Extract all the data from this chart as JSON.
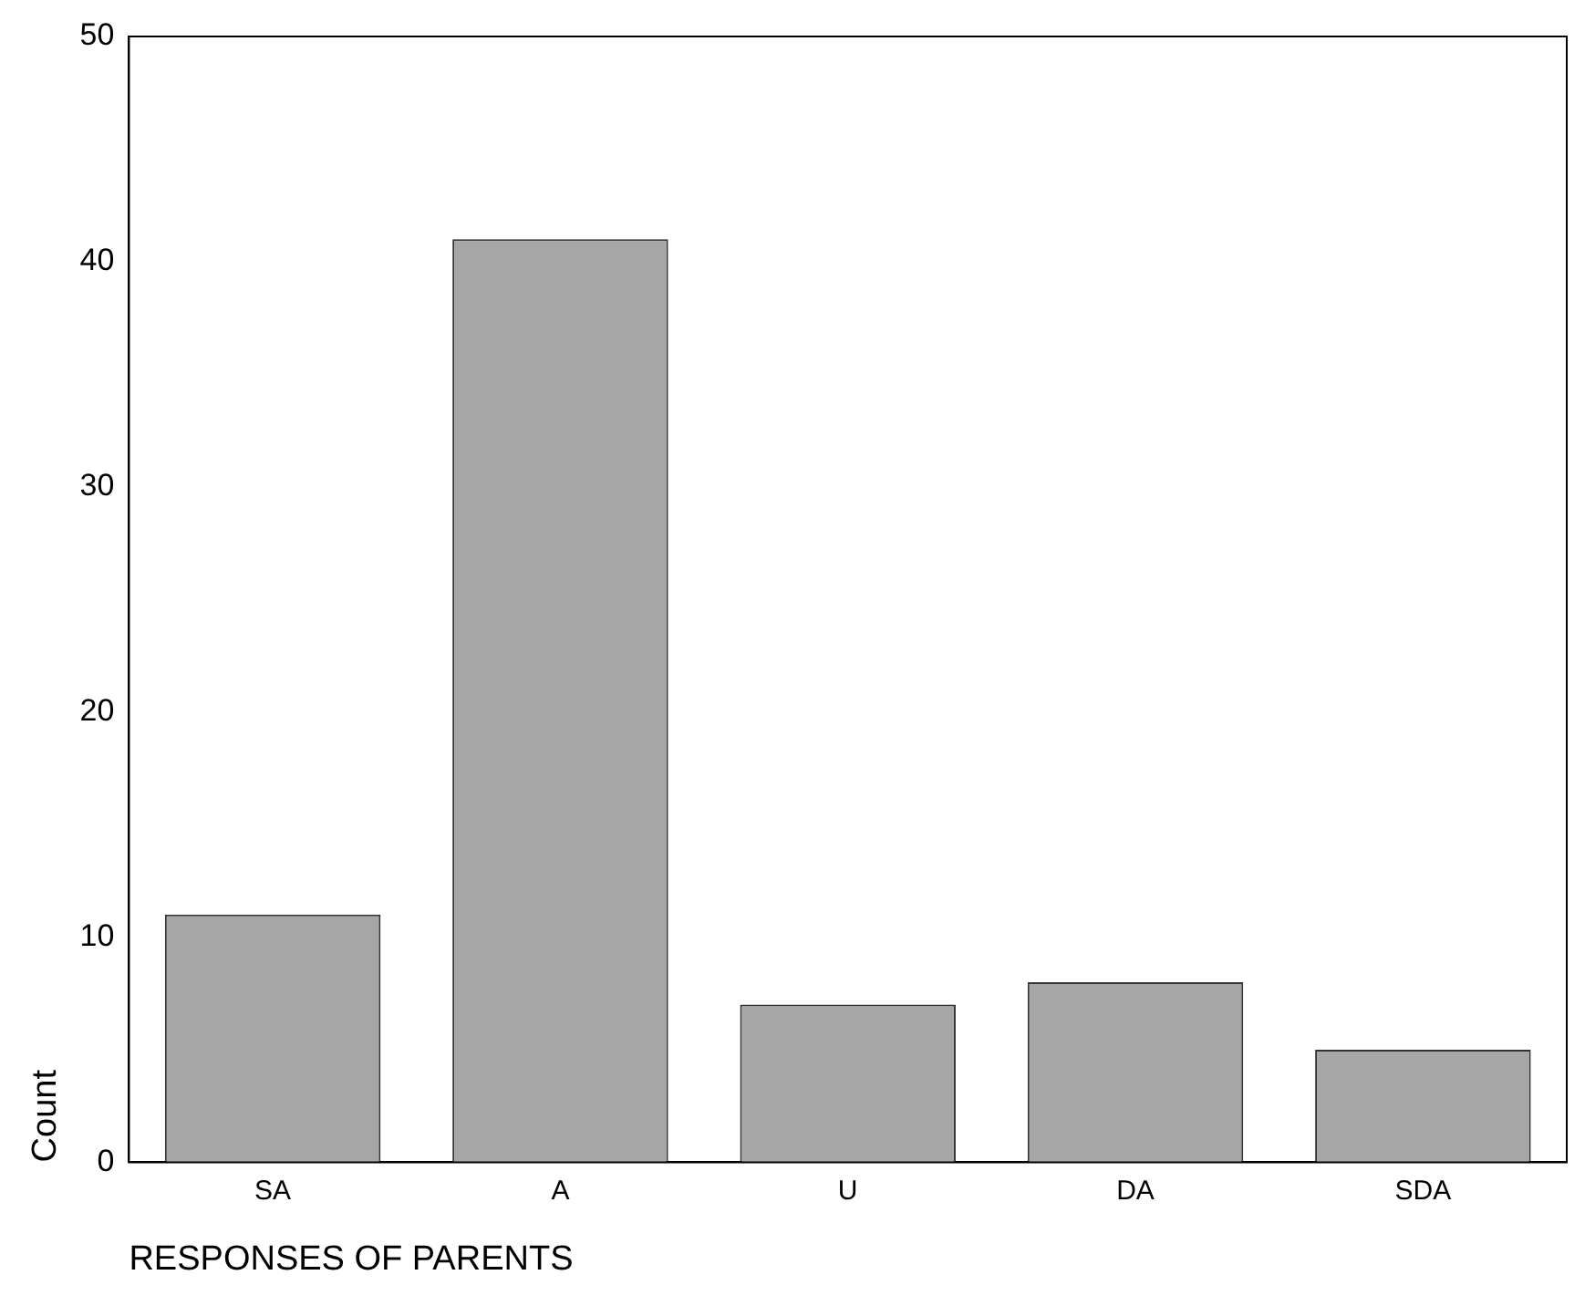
{
  "chart_data": {
    "type": "bar",
    "xlabel": "RESPONSES OF PARENTS",
    "ylabel": "Count",
    "categories": [
      "SA",
      "A",
      "U",
      "DA",
      "SDA"
    ],
    "values": [
      11,
      41,
      7,
      8,
      5
    ],
    "color": "#a6a6a6",
    "ylim": [
      0,
      50
    ],
    "yticks": [
      0,
      10,
      20,
      30,
      40,
      50
    ],
    "grid": false,
    "legend": false
  }
}
